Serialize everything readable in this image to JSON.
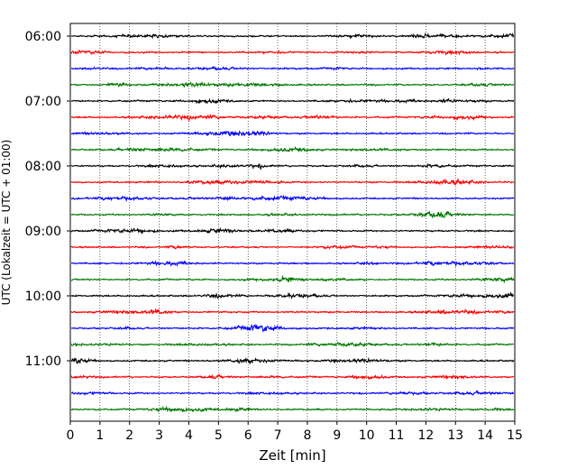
{
  "chart_data": {
    "type": "line",
    "title": "",
    "xlabel": "Zeit  [min]",
    "ylabel": "UTC (Lokalzeit = UTC + 01:00)",
    "xlim": [
      0,
      15
    ],
    "xticks": [
      0,
      1,
      2,
      3,
      4,
      5,
      6,
      7,
      8,
      9,
      10,
      11,
      12,
      13,
      14,
      15
    ],
    "grid": "vertical dotted at every minute",
    "legend": "none",
    "y_tick_labels": [
      "06:00",
      "07:00",
      "08:00",
      "09:00",
      "10:00",
      "11:00"
    ],
    "trace_interval_min": 15,
    "trace_count": 24,
    "trace_start": "06:00",
    "color_cycle": [
      "#000000",
      "#ff0000",
      "#0000ff",
      "#007700"
    ],
    "series": [
      {
        "start": "06:00",
        "color": "#000000"
      },
      {
        "start": "06:15",
        "color": "#ff0000"
      },
      {
        "start": "06:30",
        "color": "#0000ff"
      },
      {
        "start": "06:45",
        "color": "#007700"
      },
      {
        "start": "07:00",
        "color": "#000000"
      },
      {
        "start": "07:15",
        "color": "#ff0000"
      },
      {
        "start": "07:30",
        "color": "#0000ff"
      },
      {
        "start": "07:45",
        "color": "#007700"
      },
      {
        "start": "08:00",
        "color": "#000000"
      },
      {
        "start": "08:15",
        "color": "#ff0000"
      },
      {
        "start": "08:30",
        "color": "#0000ff"
      },
      {
        "start": "08:45",
        "color": "#007700"
      },
      {
        "start": "09:00",
        "color": "#000000"
      },
      {
        "start": "09:15",
        "color": "#ff0000"
      },
      {
        "start": "09:30",
        "color": "#0000ff"
      },
      {
        "start": "09:45",
        "color": "#007700"
      },
      {
        "start": "10:00",
        "color": "#000000"
      },
      {
        "start": "10:15",
        "color": "#ff0000"
      },
      {
        "start": "10:30",
        "color": "#0000ff"
      },
      {
        "start": "10:45",
        "color": "#007700"
      },
      {
        "start": "11:00",
        "color": "#000000"
      },
      {
        "start": "11:15",
        "color": "#ff0000"
      },
      {
        "start": "11:30",
        "color": "#0000ff"
      },
      {
        "start": "11:45",
        "color": "#007700"
      }
    ]
  }
}
